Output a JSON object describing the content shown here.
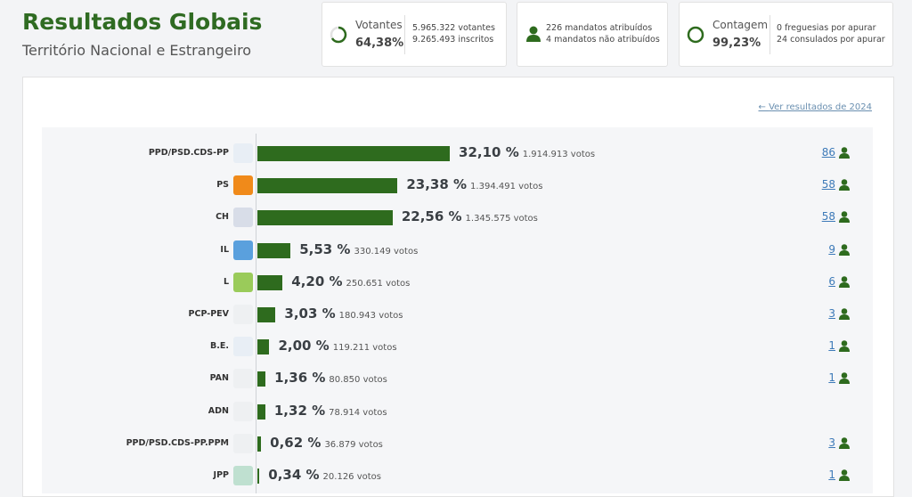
{
  "header": {
    "title": "Resultados Globais",
    "subtitle": "Território Nacional e Estrangeiro"
  },
  "stats": [
    {
      "label": "Votantes",
      "value": "64,38%",
      "details": [
        "5.965.322 votantes",
        "9.265.493 inscritos"
      ]
    },
    {
      "details": [
        "226 mandatos atribuídos",
        "4 mandatos não atribuídos"
      ]
    },
    {
      "label": "Contagem",
      "value": "99,23%",
      "details": [
        "0 freguesias por apurar",
        "24 consulados por apurar"
      ]
    }
  ],
  "link": "Ver resultados de 2024",
  "parties": [
    {
      "name": "PPD/PSD.CDS-PP",
      "percent": 32.1,
      "percent_label": "32,10 %",
      "votes": "1.914.913 votos",
      "seats": "86"
    },
    {
      "name": "PS",
      "percent": 23.38,
      "percent_label": "23,38 %",
      "votes": "1.394.491 votos",
      "seats": "58"
    },
    {
      "name": "CH",
      "percent": 22.56,
      "percent_label": "22,56 %",
      "votes": "1.345.575 votos",
      "seats": "58"
    },
    {
      "name": "IL",
      "percent": 5.53,
      "percent_label": "5,53 %",
      "votes": "330.149 votos",
      "seats": "9"
    },
    {
      "name": "L",
      "percent": 4.2,
      "percent_label": "4,20 %",
      "votes": "250.651 votos",
      "seats": "6"
    },
    {
      "name": "PCP-PEV",
      "percent": 3.03,
      "percent_label": "3,03 %",
      "votes": "180.943 votos",
      "seats": "3"
    },
    {
      "name": "B.E.",
      "percent": 2.0,
      "percent_label": "2,00 %",
      "votes": "119.211 votos",
      "seats": "1"
    },
    {
      "name": "PAN",
      "percent": 1.36,
      "percent_label": "1,36 %",
      "votes": "80.850 votos",
      "seats": "1"
    },
    {
      "name": "ADN",
      "percent": 1.32,
      "percent_label": "1,32 %",
      "votes": "78.914 votos",
      "seats": null
    },
    {
      "name": "PPD/PSD.CDS-PP.PPM",
      "percent": 0.62,
      "percent_label": "0,62 %",
      "votes": "36.879 votos",
      "seats": "3"
    },
    {
      "name": "JPP",
      "percent": 0.34,
      "percent_label": "0,34 %",
      "votes": "20.126 votos",
      "seats": "1"
    }
  ]
}
